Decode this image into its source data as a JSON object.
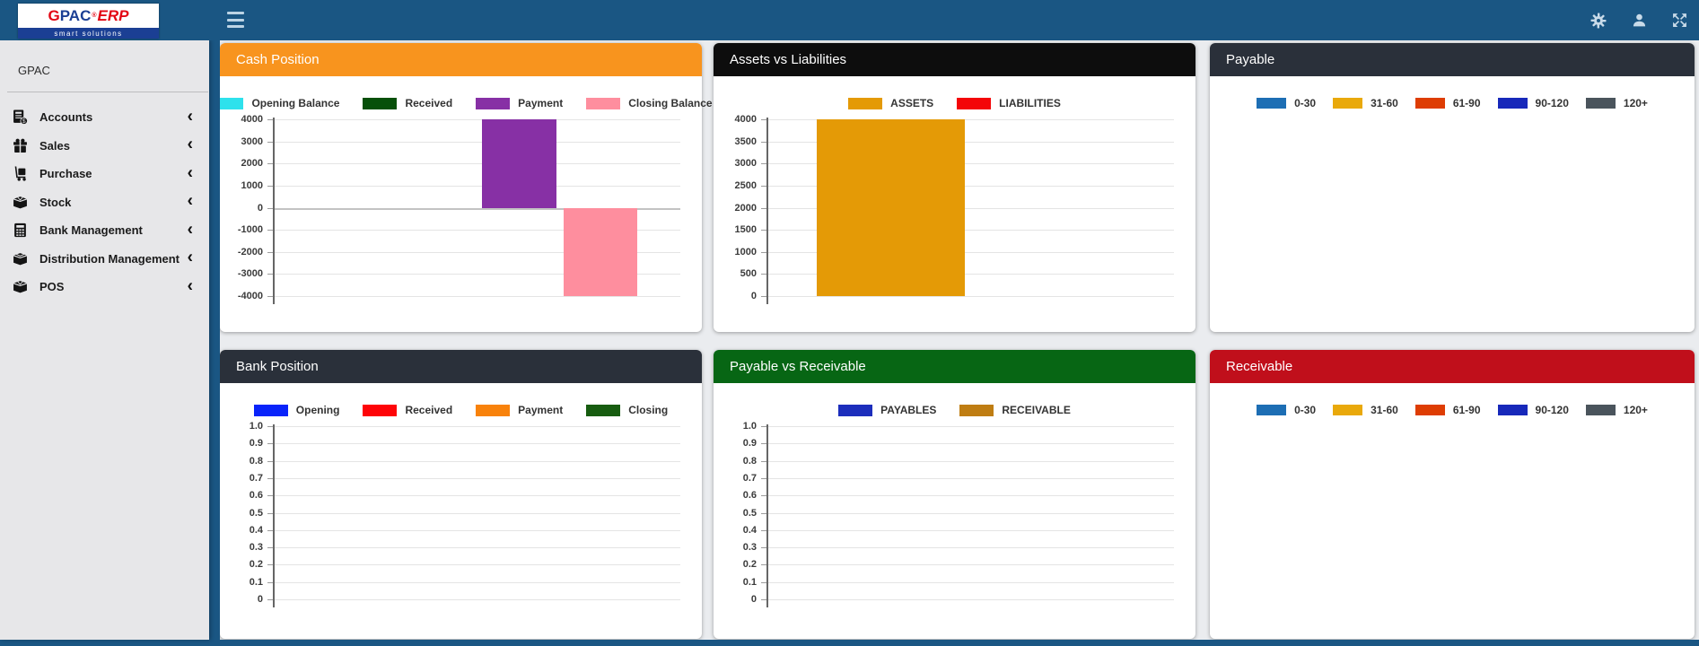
{
  "topbar": {
    "icons": [
      "settings",
      "user",
      "fullscreen"
    ]
  },
  "logo": {
    "g": "G",
    "pac": "PAC",
    "reg": "®",
    "erp": "ERP",
    "tagline": "smart solutions"
  },
  "sidebar": {
    "brand": "GPAC",
    "items": [
      {
        "label": "Accounts",
        "icon": "accounts-icon"
      },
      {
        "label": "Sales",
        "icon": "sales-icon"
      },
      {
        "label": "Purchase",
        "icon": "purchase-icon"
      },
      {
        "label": "Stock",
        "icon": "stock-icon"
      },
      {
        "label": "Bank Management",
        "icon": "bank-management-icon"
      },
      {
        "label": "Distribution Management",
        "icon": "distribution-icon"
      },
      {
        "label": "POS",
        "icon": "pos-icon"
      }
    ]
  },
  "cards": [
    {
      "title": "Cash Position",
      "header_color": "#F8941E"
    },
    {
      "title": "Assets vs Liabilities",
      "header_color": "#0D0D0D"
    },
    {
      "title": "Payable",
      "header_color": "#2A303A"
    },
    {
      "title": "Bank Position",
      "header_color": "#2A303A"
    },
    {
      "title": "Payable vs Receivable",
      "header_color": "#076614"
    },
    {
      "title": "Receivable",
      "header_color": "#C00F1B"
    }
  ],
  "chart_data": [
    {
      "type": "bar",
      "title": "Cash Position",
      "legend_position": "top",
      "grid": true,
      "ymax": 4000,
      "ymin": -4000,
      "yticks": [
        "4000",
        "3000",
        "2000",
        "1000",
        "0",
        "-1000",
        "-2000",
        "-3000",
        "-4000"
      ],
      "legend": [
        {
          "label": "Opening Balance",
          "color": "#2EE1EC"
        },
        {
          "label": "Received",
          "color": "#07500A"
        },
        {
          "label": "Payment",
          "color": "#8730A5"
        },
        {
          "label": "Closing Balance",
          "color": "#FE8E9E"
        }
      ],
      "series": [
        {
          "name": "Opening Balance",
          "value": 0
        },
        {
          "name": "Received",
          "value": 0
        },
        {
          "name": "Payment",
          "value": 4000
        },
        {
          "name": "Closing Balance",
          "value": -4000
        }
      ],
      "bars": [
        {
          "name": "Payment",
          "value": 4000,
          "color": "#8730A5",
          "left_pct": 51.2,
          "width_pct": 18.3
        },
        {
          "name": "Closing Balance",
          "value": -4000,
          "color": "#FE8E9E",
          "left_pct": 71.3,
          "width_pct": 18.1
        }
      ]
    },
    {
      "type": "bar",
      "title": "Assets vs Liabilities",
      "legend_position": "top",
      "grid": true,
      "ymax": 4000,
      "ymin": 0,
      "yticks": [
        "4000",
        "3500",
        "3000",
        "2500",
        "2000",
        "1500",
        "1000",
        "500",
        "0"
      ],
      "legend": [
        {
          "label": "ASSETS",
          "color": "#E49A06"
        },
        {
          "label": "LIABILITIES",
          "color": "#F40608"
        }
      ],
      "series": [
        {
          "name": "ASSETS",
          "value": 4000
        },
        {
          "name": "LIABILITIES",
          "value": 0
        }
      ],
      "bars": [
        {
          "name": "ASSETS",
          "value": 4000,
          "color": "#E49A06",
          "left_pct": 12.1,
          "width_pct": 36.4
        }
      ]
    },
    {
      "type": "bar",
      "title": "Payable",
      "legend_position": "top",
      "compact_legend": true,
      "ymax": null,
      "ymin": null,
      "yticks": [],
      "legend": [
        {
          "label": "0-30",
          "color": "#1D6EB4"
        },
        {
          "label": "31-60",
          "color": "#E9A90B"
        },
        {
          "label": "61-90",
          "color": "#DE3D03"
        },
        {
          "label": "90-120",
          "color": "#1728BA"
        },
        {
          "label": "120+",
          "color": "#4A545C"
        }
      ],
      "series": [],
      "bars": []
    },
    {
      "type": "bar",
      "title": "Bank Position",
      "legend_position": "top",
      "grid": true,
      "ymax": 1,
      "ymin": 0,
      "yticks": [
        "1.0",
        "0.9",
        "0.8",
        "0.7",
        "0.6",
        "0.5",
        "0.4",
        "0.3",
        "0.2",
        "0.1",
        "0"
      ],
      "legend": [
        {
          "label": "Opening",
          "color": "#0923FA"
        },
        {
          "label": "Received",
          "color": "#FE0408"
        },
        {
          "label": "Payment",
          "color": "#F8820B"
        },
        {
          "label": "Closing",
          "color": "#175C10"
        }
      ],
      "series": [
        {
          "name": "Opening",
          "value": 0
        },
        {
          "name": "Received",
          "value": 0
        },
        {
          "name": "Payment",
          "value": 0
        },
        {
          "name": "Closing",
          "value": 0
        }
      ],
      "bars": []
    },
    {
      "type": "bar",
      "title": "Payable vs Receivable",
      "legend_position": "top",
      "grid": true,
      "ymax": 1,
      "ymin": 0,
      "yticks": [
        "1.0",
        "0.9",
        "0.8",
        "0.7",
        "0.6",
        "0.5",
        "0.4",
        "0.3",
        "0.2",
        "0.1",
        "0"
      ],
      "legend": [
        {
          "label": "PAYABLES",
          "color": "#1C2EBC"
        },
        {
          "label": "RECEIVABLE",
          "color": "#BF7D12"
        }
      ],
      "series": [
        {
          "name": "PAYABLES",
          "value": 0
        },
        {
          "name": "RECEIVABLE",
          "value": 0
        }
      ],
      "bars": []
    },
    {
      "type": "bar",
      "title": "Receivable",
      "legend_position": "top",
      "compact_legend": true,
      "ymax": null,
      "ymin": null,
      "yticks": [],
      "legend": [
        {
          "label": "0-30",
          "color": "#1D6EB4"
        },
        {
          "label": "31-60",
          "color": "#E9A90B"
        },
        {
          "label": "61-90",
          "color": "#DE3D03"
        },
        {
          "label": "90-120",
          "color": "#1728BA"
        },
        {
          "label": "120+",
          "color": "#4A545C"
        }
      ],
      "series": [],
      "bars": []
    }
  ]
}
